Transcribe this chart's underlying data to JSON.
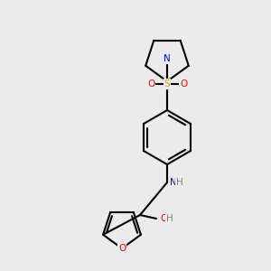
{
  "bg_color": "#ebebeb",
  "colors": {
    "N": "#0000ff",
    "O": "#ff0000",
    "S": "#ccaa00",
    "C": "#000000",
    "H": "#808080"
  },
  "bond_lw": 1.5,
  "font_size": 7.5
}
